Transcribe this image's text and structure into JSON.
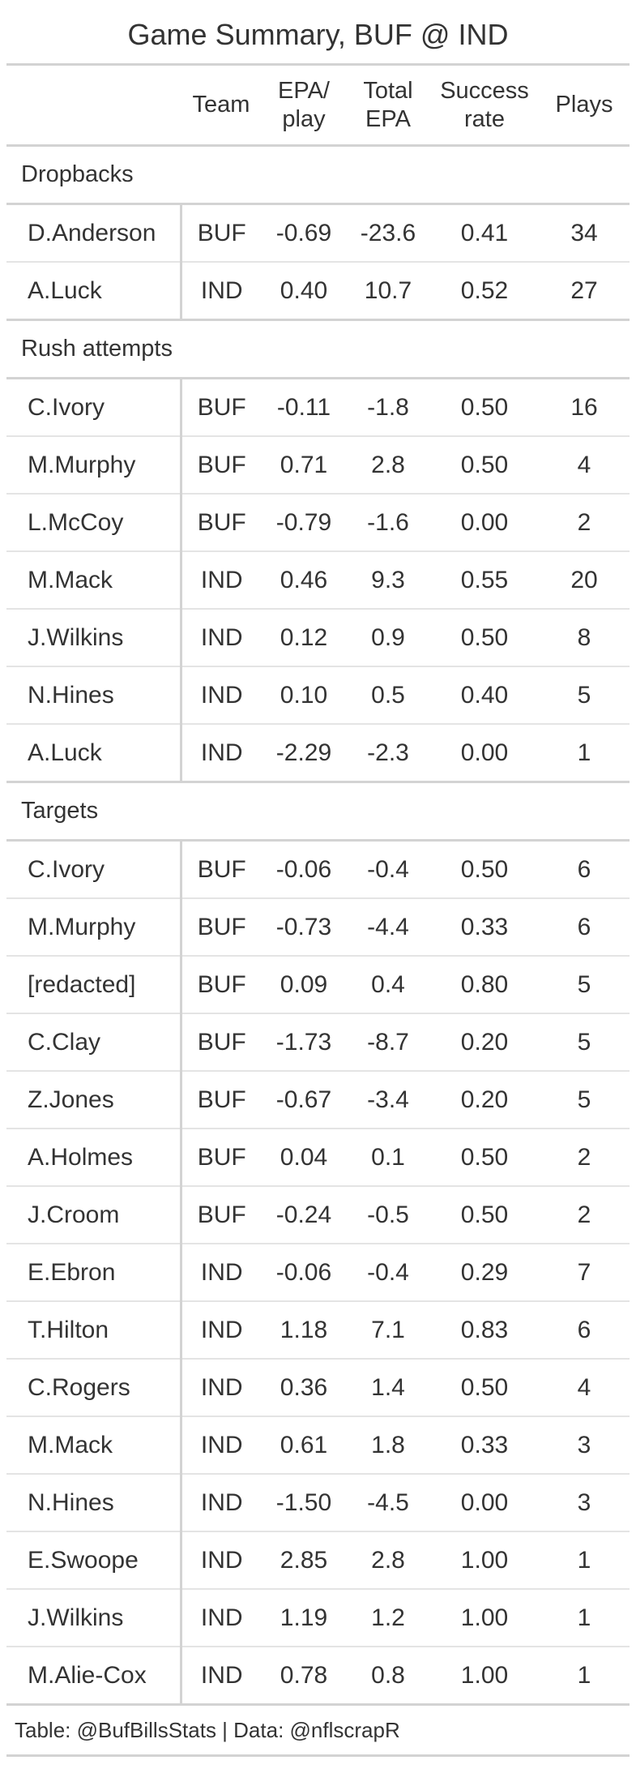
{
  "title": "Game Summary, BUF @ IND",
  "columns": {
    "name": "",
    "team": "Team",
    "epa_line1": "EPA/",
    "epa_line2": "play",
    "total_line1": "Total",
    "total_line2": "EPA",
    "success_line1": "Success",
    "success_line2": "rate",
    "plays": "Plays"
  },
  "groups": [
    {
      "label": "Dropbacks",
      "rows": [
        {
          "name": "D.Anderson",
          "team": "BUF",
          "epa_play": "-0.69",
          "total_epa": "-23.6",
          "success_rate": "0.41",
          "plays": "34"
        },
        {
          "name": "A.Luck",
          "team": "IND",
          "epa_play": "0.40",
          "total_epa": "10.7",
          "success_rate": "0.52",
          "plays": "27"
        }
      ]
    },
    {
      "label": "Rush attempts",
      "rows": [
        {
          "name": "C.Ivory",
          "team": "BUF",
          "epa_play": "-0.11",
          "total_epa": "-1.8",
          "success_rate": "0.50",
          "plays": "16"
        },
        {
          "name": "M.Murphy",
          "team": "BUF",
          "epa_play": "0.71",
          "total_epa": "2.8",
          "success_rate": "0.50",
          "plays": "4"
        },
        {
          "name": "L.McCoy",
          "team": "BUF",
          "epa_play": "-0.79",
          "total_epa": "-1.6",
          "success_rate": "0.00",
          "plays": "2"
        },
        {
          "name": "M.Mack",
          "team": "IND",
          "epa_play": "0.46",
          "total_epa": "9.3",
          "success_rate": "0.55",
          "plays": "20"
        },
        {
          "name": "J.Wilkins",
          "team": "IND",
          "epa_play": "0.12",
          "total_epa": "0.9",
          "success_rate": "0.50",
          "plays": "8"
        },
        {
          "name": "N.Hines",
          "team": "IND",
          "epa_play": "0.10",
          "total_epa": "0.5",
          "success_rate": "0.40",
          "plays": "5"
        },
        {
          "name": "A.Luck",
          "team": "IND",
          "epa_play": "-2.29",
          "total_epa": "-2.3",
          "success_rate": "0.00",
          "plays": "1"
        }
      ]
    },
    {
      "label": "Targets",
      "rows": [
        {
          "name": "C.Ivory",
          "team": "BUF",
          "epa_play": "-0.06",
          "total_epa": "-0.4",
          "success_rate": "0.50",
          "plays": "6"
        },
        {
          "name": "M.Murphy",
          "team": "BUF",
          "epa_play": "-0.73",
          "total_epa": "-4.4",
          "success_rate": "0.33",
          "plays": "6"
        },
        {
          "name": "[redacted]",
          "team": "BUF",
          "epa_play": "0.09",
          "total_epa": "0.4",
          "success_rate": "0.80",
          "plays": "5"
        },
        {
          "name": "C.Clay",
          "team": "BUF",
          "epa_play": "-1.73",
          "total_epa": "-8.7",
          "success_rate": "0.20",
          "plays": "5"
        },
        {
          "name": "Z.Jones",
          "team": "BUF",
          "epa_play": "-0.67",
          "total_epa": "-3.4",
          "success_rate": "0.20",
          "plays": "5"
        },
        {
          "name": "A.Holmes",
          "team": "BUF",
          "epa_play": "0.04",
          "total_epa": "0.1",
          "success_rate": "0.50",
          "plays": "2"
        },
        {
          "name": "J.Croom",
          "team": "BUF",
          "epa_play": "-0.24",
          "total_epa": "-0.5",
          "success_rate": "0.50",
          "plays": "2"
        },
        {
          "name": "E.Ebron",
          "team": "IND",
          "epa_play": "-0.06",
          "total_epa": "-0.4",
          "success_rate": "0.29",
          "plays": "7"
        },
        {
          "name": "T.Hilton",
          "team": "IND",
          "epa_play": "1.18",
          "total_epa": "7.1",
          "success_rate": "0.83",
          "plays": "6"
        },
        {
          "name": "C.Rogers",
          "team": "IND",
          "epa_play": "0.36",
          "total_epa": "1.4",
          "success_rate": "0.50",
          "plays": "4"
        },
        {
          "name": "M.Mack",
          "team": "IND",
          "epa_play": "0.61",
          "total_epa": "1.8",
          "success_rate": "0.33",
          "plays": "3"
        },
        {
          "name": "N.Hines",
          "team": "IND",
          "epa_play": "-1.50",
          "total_epa": "-4.5",
          "success_rate": "0.00",
          "plays": "3"
        },
        {
          "name": "E.Swoope",
          "team": "IND",
          "epa_play": "2.85",
          "total_epa": "2.8",
          "success_rate": "1.00",
          "plays": "1"
        },
        {
          "name": "J.Wilkins",
          "team": "IND",
          "epa_play": "1.19",
          "total_epa": "1.2",
          "success_rate": "1.00",
          "plays": "1"
        },
        {
          "name": "M.Alie-Cox",
          "team": "IND",
          "epa_play": "0.78",
          "total_epa": "0.8",
          "success_rate": "1.00",
          "plays": "1"
        }
      ]
    }
  ],
  "footer": "Table: @BufBillsStats | Data: @nflscrapR"
}
